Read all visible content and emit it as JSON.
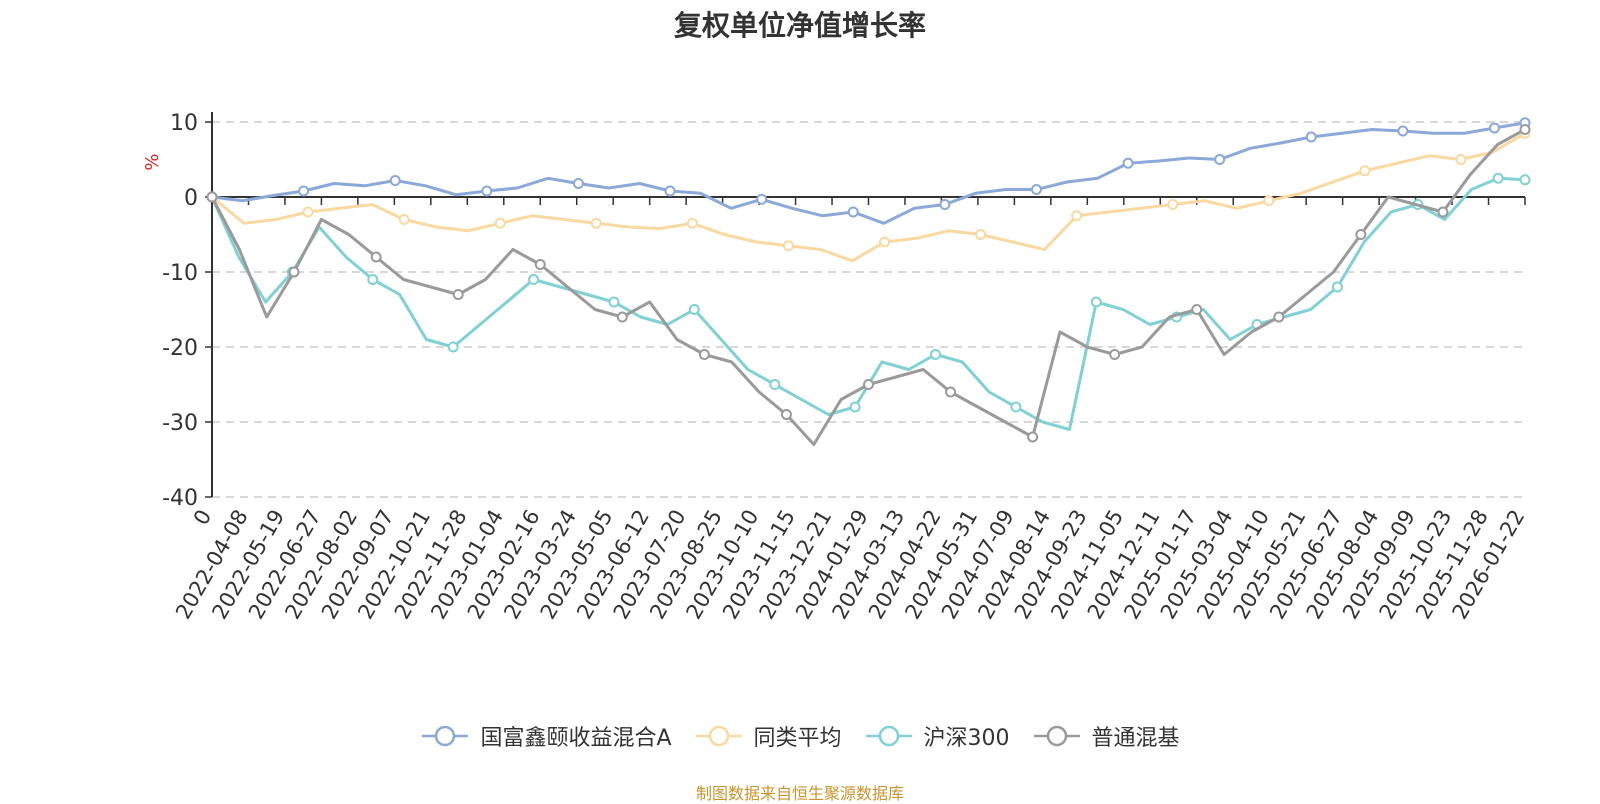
{
  "chart_data": {
    "type": "line",
    "title": "复权单位净值增长率",
    "ylabel": "%",
    "ylim": [
      -40,
      10
    ],
    "y_ticks": [
      "10",
      "0",
      "-10",
      "-20",
      "-30",
      "-40"
    ],
    "x_tick_labels": [
      "0",
      "2022-04-08",
      "2022-05-19",
      "2022-06-27",
      "2022-08-02",
      "2022-09-07",
      "2022-10-21",
      "2022-11-28",
      "2023-01-04",
      "2023-02-16",
      "2023-03-24",
      "2023-05-05",
      "2023-06-12",
      "2023-07-20",
      "2023-08-25",
      "2023-10-10",
      "2023-11-15",
      "2023-12-21",
      "2024-01-29",
      "2024-03-13",
      "2024-04-22",
      "2024-05-31",
      "2024-07-09",
      "2024-08-14",
      "2024-09-23",
      "2024-11-05",
      "2024-12-11",
      "2025-01-17",
      "2025-03-04",
      "2025-04-10",
      "2025-05-21",
      "2025-06-27",
      "2025-08-04",
      "2025-09-09",
      "2025-10-23",
      "2025-11-28",
      "2026-01-22"
    ],
    "grid": "dashed-horizontal",
    "legend": "bottom-center",
    "series": [
      {
        "name": "国富鑫颐收益混合A",
        "color": "#8aa8d8",
        "values": [
          0,
          -0.5,
          0.2,
          0.8,
          1.8,
          1.5,
          2.2,
          1.5,
          0.3,
          0.8,
          1.2,
          2.5,
          1.8,
          1.2,
          1.8,
          0.8,
          0.5,
          -1.5,
          -0.3,
          -1.5,
          -2.5,
          -2.0,
          -3.5,
          -1.5,
          -1.0,
          0.5,
          1.0,
          1.0,
          2.0,
          2.5,
          4.5,
          4.8,
          5.2,
          5.0,
          6.5,
          7.2,
          8.0,
          8.5,
          9.0,
          8.8,
          8.5,
          8.5,
          9.2,
          9.9
        ]
      },
      {
        "name": "同类平均",
        "color": "#f8d9a0",
        "values": [
          0,
          -3.5,
          -3.0,
          -2.0,
          -1.5,
          -1.0,
          -3.0,
          -4.0,
          -4.5,
          -3.5,
          -2.5,
          -3.0,
          -3.5,
          -4.0,
          -4.2,
          -3.5,
          -5.0,
          -6.0,
          -6.5,
          -7.0,
          -8.5,
          -6.0,
          -5.5,
          -4.5,
          -5.0,
          -6.0,
          -7.0,
          -2.5,
          -2.0,
          -1.5,
          -1.0,
          -0.5,
          -1.5,
          -0.5,
          0.5,
          2.0,
          3.5,
          4.5,
          5.5,
          5.0,
          6.0,
          8.5
        ]
      },
      {
        "name": "沪深300",
        "color": "#7fd1d4",
        "values": [
          0,
          -8,
          -14,
          -10,
          -4,
          -8,
          -11,
          -13,
          -19,
          -20,
          -17,
          -14,
          -11,
          -12,
          -13,
          -14,
          -16,
          -17,
          -15,
          -19,
          -23,
          -25,
          -27,
          -29,
          -28,
          -22,
          -23,
          -21,
          -22,
          -26,
          -28,
          -30,
          -31,
          -14,
          -15,
          -17,
          -16,
          -15,
          -19,
          -17,
          -16,
          -15,
          -12,
          -6,
          -2,
          -1,
          -3,
          1,
          2.5,
          2.3
        ]
      },
      {
        "name": "普通混基",
        "color": "#9a9a9a",
        "values": [
          0,
          -7,
          -16,
          -10,
          -3,
          -5,
          -8,
          -11,
          -12,
          -13,
          -11,
          -7,
          -9,
          -12,
          -15,
          -16,
          -14,
          -19,
          -21,
          -22,
          -26,
          -29,
          -33,
          -27,
          -25,
          -24,
          -23,
          -26,
          -28,
          -30,
          -32,
          -18,
          -20,
          -21,
          -20,
          -16,
          -15,
          -21,
          -18,
          -16,
          -13,
          -10,
          -5,
          0,
          -1,
          -2,
          3,
          7,
          9
        ]
      }
    ]
  },
  "footer": {
    "source": "制图数据来自恒生聚源数据库"
  }
}
